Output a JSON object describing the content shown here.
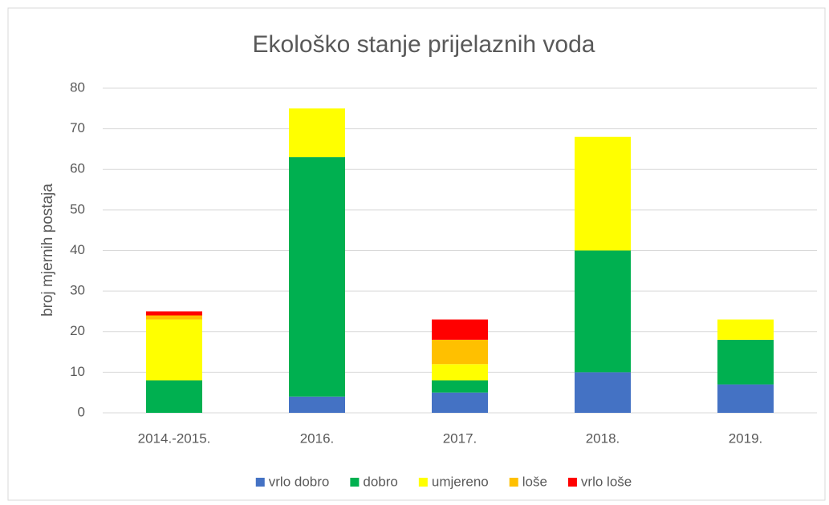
{
  "chart_data": {
    "type": "stacked_bar",
    "title": "Ekološko stanje prijelaznih voda",
    "y_label": "broj mjernih postaja",
    "categories": [
      "2014.-2015.",
      "2016.",
      "2017.",
      "2018.",
      "2019."
    ],
    "series": [
      {
        "name": "vrlo dobro",
        "color": "#4472c4",
        "values": [
          0,
          4,
          5,
          10,
          7
        ]
      },
      {
        "name": "dobro",
        "color": "#00b050",
        "values": [
          8,
          59,
          3,
          30,
          11
        ]
      },
      {
        "name": "umjereno",
        "color": "#ffff00",
        "values": [
          15,
          12,
          4,
          28,
          5
        ]
      },
      {
        "name": "loše",
        "color": "#ffc000",
        "values": [
          1,
          0,
          6,
          0,
          0
        ]
      },
      {
        "name": "vrlo loše",
        "color": "#ff0000",
        "values": [
          1,
          0,
          5,
          0,
          0
        ]
      }
    ],
    "ylim": [
      0,
      80
    ],
    "yticks": [
      0,
      10,
      20,
      30,
      40,
      50,
      60,
      70,
      80
    ],
    "grid": true,
    "legend": "bottom"
  }
}
